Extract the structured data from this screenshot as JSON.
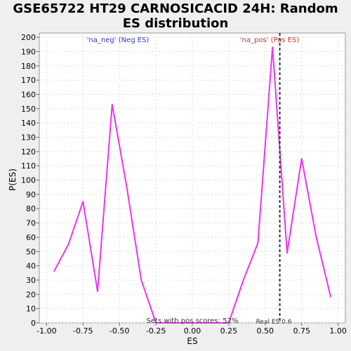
{
  "chart_data": {
    "type": "line",
    "title_lines": [
      "GSE65722 HT29 CARNOSICACID 24H: Random",
      "ES distribution"
    ],
    "xlabel": "ES",
    "ylabel": "P(ES)",
    "xlim": [
      -1.05,
      1.05
    ],
    "ylim": [
      0,
      203
    ],
    "xticks": [
      -1.0,
      -0.75,
      -0.5,
      -0.25,
      0.0,
      0.25,
      0.5,
      0.75,
      1.0
    ],
    "xtick_labels": [
      "-1.00",
      "-0.75",
      "-0.50",
      "-0.25",
      "0.00",
      "0.25",
      "0.50",
      "0.75",
      "1.00"
    ],
    "yticks": [
      0,
      10,
      20,
      30,
      40,
      50,
      60,
      70,
      80,
      90,
      100,
      110,
      120,
      130,
      140,
      150,
      160,
      170,
      180,
      190,
      200
    ],
    "grid": true,
    "series": [
      {
        "color": "#ee33ee",
        "points": [
          [
            -0.95,
            36
          ],
          [
            -0.85,
            55
          ],
          [
            -0.75,
            85
          ],
          [
            -0.65,
            22
          ],
          [
            -0.55,
            153
          ],
          [
            -0.45,
            95
          ],
          [
            -0.35,
            30
          ],
          [
            -0.25,
            0
          ],
          [
            -0.15,
            0
          ],
          [
            -0.05,
            0
          ],
          [
            0.05,
            0
          ],
          [
            0.15,
            0
          ],
          [
            0.25,
            0
          ],
          [
            0.35,
            30
          ],
          [
            0.45,
            56
          ],
          [
            0.55,
            193
          ],
          [
            0.65,
            49
          ],
          [
            0.75,
            115
          ],
          [
            0.85,
            60
          ],
          [
            0.95,
            18
          ]
        ]
      }
    ],
    "real_es": 0.6,
    "annotations": {
      "neg_label": "'na_neg' (Neg ES)",
      "pos_label": "'na_pos' (Pos ES)",
      "sets_label": "Sets with pos scores: 52%",
      "real_es_label": "Real ES 0.6"
    },
    "colors": {
      "neg_label": "#3333cc",
      "pos_label": "#cc3333",
      "line": "#ee33ee",
      "grid": "#dddddd"
    }
  }
}
